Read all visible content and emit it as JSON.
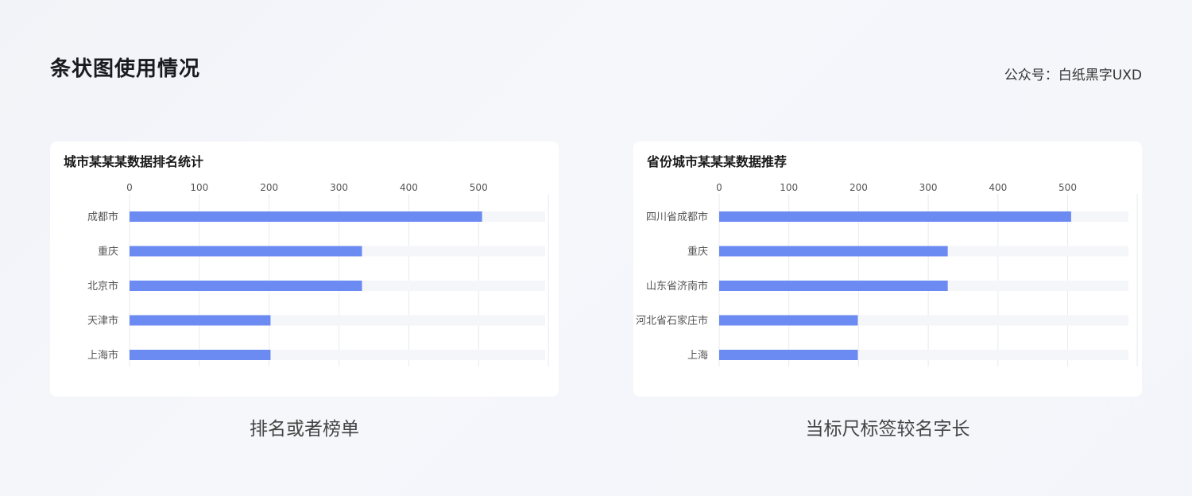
{
  "header": {
    "title": "条状图使用情况",
    "account": "公众号：白纸黑字UXD"
  },
  "captions": {
    "left": "排名或者榜单",
    "right": "当标尺标签较名字长"
  },
  "colors": {
    "bar": "#6b8af2",
    "track": "#f5f6fa",
    "grid": "#e8eaef",
    "label": "#555555"
  },
  "chart_data": [
    {
      "type": "bar",
      "orientation": "horizontal",
      "title": "城市某某某数据排名统计",
      "categories": [
        "成都市",
        "重庆",
        "北京市",
        "天津市",
        "上海市"
      ],
      "values": [
        505,
        333,
        333,
        202,
        202
      ],
      "ticks": [
        "0",
        "100",
        "200",
        "300",
        "400",
        "500"
      ],
      "xlim": [
        0,
        600
      ],
      "grid": true,
      "legend": "none"
    },
    {
      "type": "bar",
      "orientation": "horizontal",
      "title": "省份城市某某某数据推荐",
      "categories": [
        "四川省成都市",
        "重庆",
        "山东省济南市",
        "河北省石家庄市",
        "上海"
      ],
      "values": [
        505,
        328,
        328,
        199,
        199
      ],
      "ticks": [
        "0",
        "100",
        "200",
        "300",
        "400",
        "500"
      ],
      "xlim": [
        0,
        600
      ],
      "grid": true,
      "legend": "none"
    }
  ]
}
